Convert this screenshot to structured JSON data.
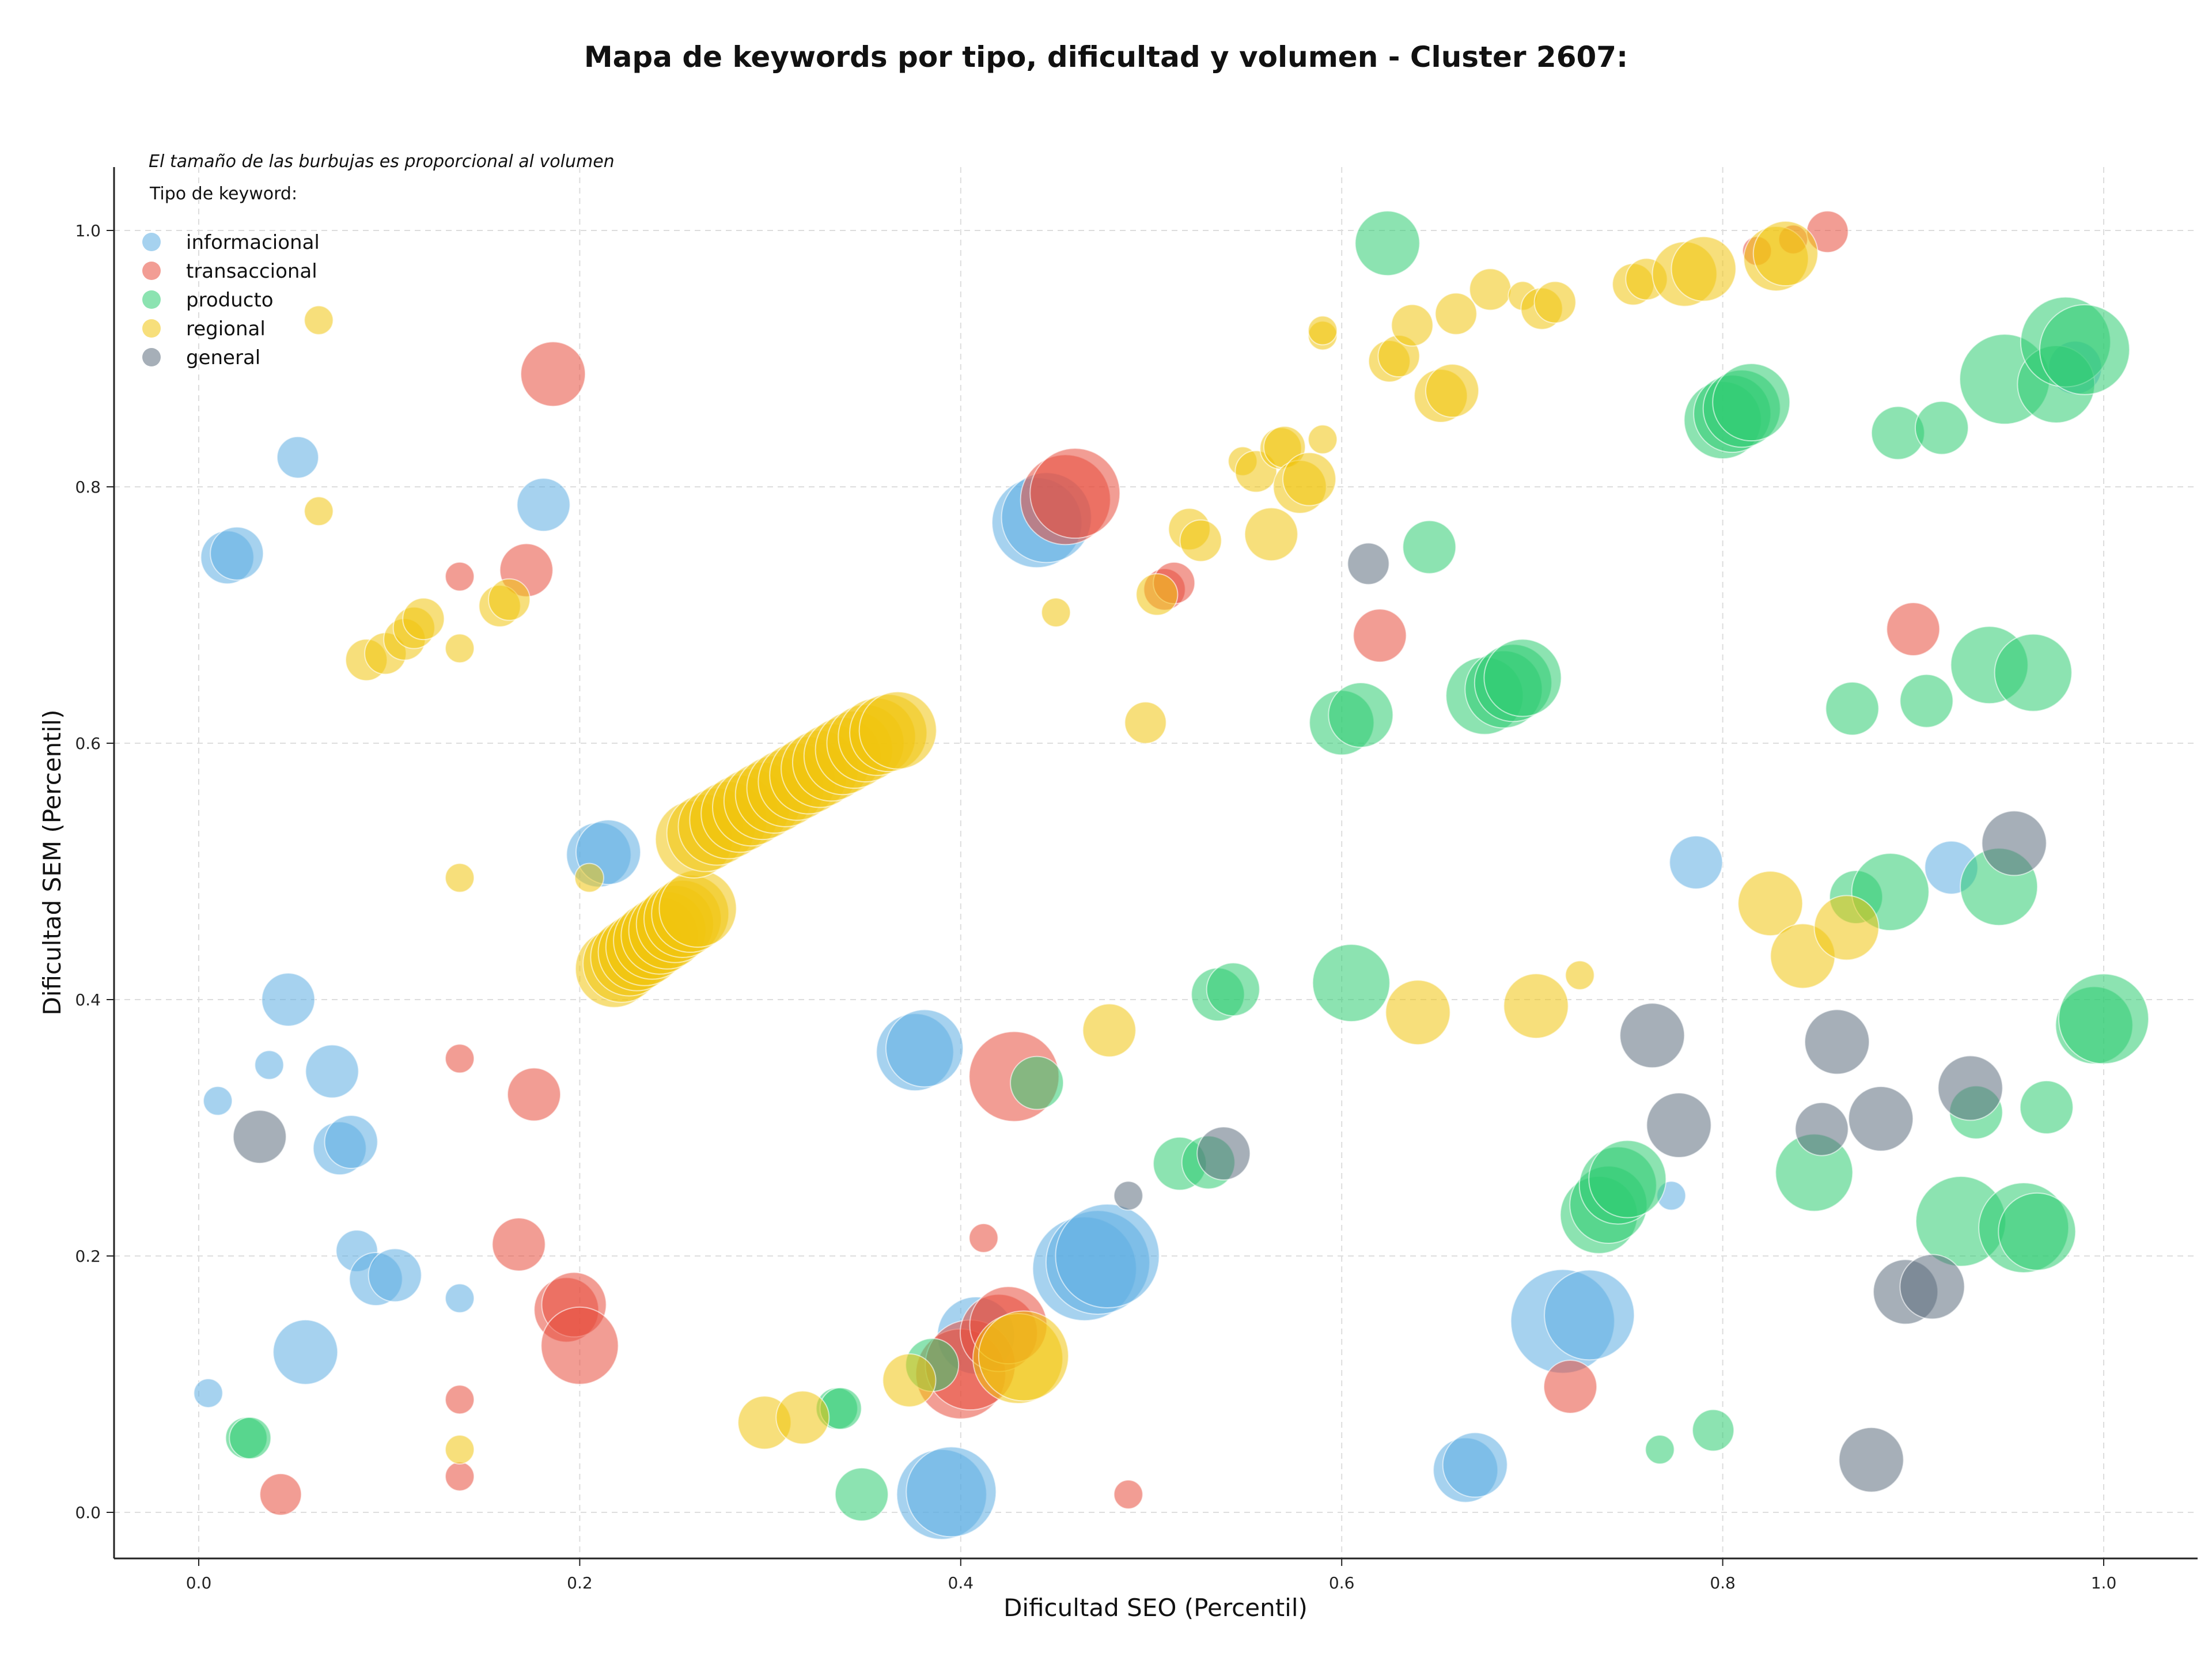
{
  "chart_data": {
    "type": "scatter",
    "title": "Mapa de keywords por tipo, dificultad y volumen - Cluster 2607:",
    "xlabel": "Dificultad SEO (Percentil)",
    "ylabel": "Dificultad SEM (Percentil)",
    "note": "El tamaño de las burbujas es proporcional al volumen",
    "xlim": [
      -0.045,
      1.05
    ],
    "ylim": [
      -0.035,
      1.05
    ],
    "xticks": [
      "0.0",
      "0.2",
      "0.4",
      "0.6",
      "0.8",
      "1.0"
    ],
    "yticks": [
      "0.0",
      "0.2",
      "0.4",
      "0.6",
      "0.8",
      "1.0"
    ],
    "grid": true,
    "legend": {
      "title": "Tipo de keyword:",
      "placement": "top-left"
    },
    "series": [
      {
        "name": "informacional",
        "color": "#5DADE2",
        "points": [
          [
            0.015,
            0.745,
            3
          ],
          [
            0.02,
            0.748,
            3
          ],
          [
            0.052,
            0.823,
            2
          ],
          [
            0.181,
            0.786,
            3
          ],
          [
            0.005,
            0.093,
            1
          ],
          [
            0.01,
            0.321,
            1
          ],
          [
            0.037,
            0.349,
            1
          ],
          [
            0.047,
            0.4,
            3
          ],
          [
            0.07,
            0.344,
            3
          ],
          [
            0.074,
            0.284,
            3
          ],
          [
            0.08,
            0.289,
            3
          ],
          [
            0.083,
            0.204,
            2
          ],
          [
            0.093,
            0.182,
            3
          ],
          [
            0.103,
            0.185,
            3
          ],
          [
            0.137,
            0.167,
            1
          ],
          [
            0.056,
            0.125,
            4
          ],
          [
            0.21,
            0.513,
            4
          ],
          [
            0.215,
            0.515,
            4
          ],
          [
            0.376,
            0.359,
            5
          ],
          [
            0.381,
            0.362,
            5
          ],
          [
            0.44,
            0.772,
            6
          ],
          [
            0.445,
            0.776,
            6
          ],
          [
            0.465,
            0.19,
            7
          ],
          [
            0.472,
            0.195,
            7
          ],
          [
            0.477,
            0.2,
            7
          ],
          [
            0.408,
            0.138,
            5
          ],
          [
            0.39,
            0.014,
            6
          ],
          [
            0.395,
            0.016,
            6
          ],
          [
            0.665,
            0.033,
            4
          ],
          [
            0.67,
            0.037,
            4
          ],
          [
            0.716,
            0.149,
            7
          ],
          [
            0.73,
            0.154,
            6
          ],
          [
            0.773,
            0.247,
            1
          ],
          [
            0.786,
            0.507,
            3
          ],
          [
            0.92,
            0.503,
            3
          ],
          [
            0.985,
            0.893,
            3
          ]
        ]
      },
      {
        "name": "transaccional",
        "color": "#E74C3C",
        "points": [
          [
            0.137,
            0.73,
            1
          ],
          [
            0.172,
            0.735,
            3
          ],
          [
            0.186,
            0.888,
            4
          ],
          [
            0.137,
            0.354,
            1
          ],
          [
            0.176,
            0.326,
            3
          ],
          [
            0.168,
            0.209,
            3
          ],
          [
            0.193,
            0.158,
            4
          ],
          [
            0.197,
            0.162,
            4
          ],
          [
            0.2,
            0.13,
            5
          ],
          [
            0.137,
            0.088,
            1
          ],
          [
            0.137,
            0.028,
            1
          ],
          [
            0.043,
            0.014,
            2
          ],
          [
            0.412,
            0.214,
            1
          ],
          [
            0.4,
            0.108,
            6
          ],
          [
            0.405,
            0.115,
            6
          ],
          [
            0.42,
            0.14,
            5
          ],
          [
            0.425,
            0.146,
            5
          ],
          [
            0.428,
            0.34,
            6
          ],
          [
            0.488,
            0.014,
            1
          ],
          [
            0.455,
            0.79,
            6
          ],
          [
            0.46,
            0.795,
            6
          ],
          [
            0.507,
            0.72,
            2
          ],
          [
            0.512,
            0.725,
            2
          ],
          [
            0.62,
            0.684,
            3
          ],
          [
            0.72,
            0.098,
            3
          ],
          [
            0.818,
            0.984,
            1
          ],
          [
            0.837,
            0.993,
            1
          ],
          [
            0.855,
            0.999,
            2
          ],
          [
            0.9,
            0.689,
            3
          ]
        ]
      },
      {
        "name": "producto",
        "color": "#2ECC71",
        "points": [
          [
            0.025,
            0.058,
            2
          ],
          [
            0.027,
            0.058,
            2
          ],
          [
            0.335,
            0.081,
            2
          ],
          [
            0.337,
            0.081,
            2
          ],
          [
            0.348,
            0.014,
            3
          ],
          [
            0.385,
            0.115,
            3
          ],
          [
            0.44,
            0.335,
            3
          ],
          [
            0.515,
            0.272,
            3
          ],
          [
            0.53,
            0.273,
            3
          ],
          [
            0.535,
            0.404,
            3
          ],
          [
            0.543,
            0.408,
            3
          ],
          [
            0.6,
            0.616,
            4
          ],
          [
            0.61,
            0.622,
            4
          ],
          [
            0.605,
            0.413,
            5
          ],
          [
            0.624,
            0.99,
            4
          ],
          [
            0.646,
            0.753,
            3
          ],
          [
            0.675,
            0.637,
            5
          ],
          [
            0.685,
            0.642,
            5
          ],
          [
            0.69,
            0.647,
            5
          ],
          [
            0.695,
            0.651,
            5
          ],
          [
            0.735,
            0.232,
            5
          ],
          [
            0.74,
            0.24,
            5
          ],
          [
            0.745,
            0.255,
            5
          ],
          [
            0.75,
            0.26,
            5
          ],
          [
            0.767,
            0.049,
            1
          ],
          [
            0.795,
            0.064,
            2
          ],
          [
            0.8,
            0.852,
            5
          ],
          [
            0.805,
            0.857,
            5
          ],
          [
            0.81,
            0.861,
            5
          ],
          [
            0.815,
            0.866,
            5
          ],
          [
            0.848,
            0.265,
            5
          ],
          [
            0.87,
            0.48,
            3
          ],
          [
            0.868,
            0.627,
            3
          ],
          [
            0.888,
            0.484,
            5
          ],
          [
            0.892,
            0.842,
            3
          ],
          [
            0.907,
            0.633,
            3
          ],
          [
            0.915,
            0.846,
            3
          ],
          [
            0.925,
            0.227,
            6
          ],
          [
            0.933,
            0.312,
            3
          ],
          [
            0.94,
            0.661,
            5
          ],
          [
            0.945,
            0.488,
            5
          ],
          [
            0.948,
            0.884,
            6
          ],
          [
            0.958,
            0.222,
            6
          ],
          [
            0.965,
            0.219,
            5
          ],
          [
            0.963,
            0.655,
            5
          ],
          [
            0.97,
            0.316,
            3
          ],
          [
            0.975,
            0.88,
            5
          ],
          [
            0.98,
            0.913,
            6
          ],
          [
            0.99,
            0.907,
            6
          ],
          [
            0.995,
            0.38,
            5
          ],
          [
            1.0,
            0.385,
            6
          ]
        ]
      },
      {
        "name": "regional",
        "color": "#F1C40F",
        "points": [
          [
            0.063,
            0.93,
            1
          ],
          [
            0.063,
            0.781,
            1
          ],
          [
            0.088,
            0.665,
            2
          ],
          [
            0.098,
            0.67,
            2
          ],
          [
            0.108,
            0.681,
            2
          ],
          [
            0.113,
            0.69,
            2
          ],
          [
            0.118,
            0.697,
            2
          ],
          [
            0.137,
            0.674,
            1
          ],
          [
            0.158,
            0.707,
            2
          ],
          [
            0.163,
            0.712,
            2
          ],
          [
            0.137,
            0.495,
            1
          ],
          [
            0.205,
            0.495,
            1
          ],
          [
            0.137,
            0.049,
            1
          ],
          [
            0.297,
            0.07,
            3
          ],
          [
            0.317,
            0.074,
            3
          ],
          [
            0.373,
            0.103,
            3
          ],
          [
            0.43,
            0.12,
            6
          ],
          [
            0.433,
            0.122,
            6
          ],
          [
            0.45,
            0.702,
            1
          ],
          [
            0.478,
            0.376,
            3
          ],
          [
            0.497,
            0.616,
            2
          ],
          [
            0.503,
            0.716,
            2
          ],
          [
            0.52,
            0.767,
            2
          ],
          [
            0.526,
            0.758,
            2
          ],
          [
            0.548,
            0.82,
            1
          ],
          [
            0.555,
            0.812,
            2
          ],
          [
            0.563,
            0.763,
            3
          ],
          [
            0.568,
            0.83,
            2
          ],
          [
            0.57,
            0.831,
            2
          ],
          [
            0.578,
            0.8,
            3
          ],
          [
            0.583,
            0.806,
            3
          ],
          [
            0.59,
            0.837,
            1
          ],
          [
            0.59,
            0.918,
            1
          ],
          [
            0.59,
            0.922,
            1
          ],
          [
            0.625,
            0.898,
            2
          ],
          [
            0.63,
            0.902,
            2
          ],
          [
            0.637,
            0.926,
            2
          ],
          [
            0.652,
            0.871,
            3
          ],
          [
            0.658,
            0.875,
            3
          ],
          [
            0.66,
            0.935,
            2
          ],
          [
            0.64,
            0.39,
            4
          ],
          [
            0.678,
            0.954,
            2
          ],
          [
            0.695,
            0.949,
            1
          ],
          [
            0.702,
            0.395,
            4
          ],
          [
            0.705,
            0.939,
            2
          ],
          [
            0.712,
            0.944,
            2
          ],
          [
            0.725,
            0.419,
            1
          ],
          [
            0.753,
            0.958,
            2
          ],
          [
            0.76,
            0.962,
            2
          ],
          [
            0.78,
            0.966,
            4
          ],
          [
            0.79,
            0.97,
            4
          ],
          [
            0.825,
            0.475,
            4
          ],
          [
            0.828,
            0.978,
            4
          ],
          [
            0.833,
            0.982,
            4
          ],
          [
            0.842,
            0.434,
            4
          ],
          [
            0.865,
            0.456,
            4
          ],
          [
            0.218,
            0.424,
            5
          ],
          [
            0.222,
            0.428,
            5
          ],
          [
            0.226,
            0.433,
            5
          ],
          [
            0.23,
            0.437,
            5
          ],
          [
            0.234,
            0.441,
            5
          ],
          [
            0.238,
            0.446,
            5
          ],
          [
            0.242,
            0.45,
            5
          ],
          [
            0.246,
            0.454,
            5
          ],
          [
            0.25,
            0.459,
            5
          ],
          [
            0.254,
            0.463,
            5
          ],
          [
            0.258,
            0.467,
            5
          ],
          [
            0.262,
            0.471,
            5
          ],
          [
            0.26,
            0.525,
            5
          ],
          [
            0.266,
            0.53,
            5
          ],
          [
            0.272,
            0.535,
            5
          ],
          [
            0.278,
            0.54,
            5
          ],
          [
            0.284,
            0.545,
            5
          ],
          [
            0.29,
            0.55,
            5
          ],
          [
            0.296,
            0.555,
            5
          ],
          [
            0.302,
            0.56,
            5
          ],
          [
            0.308,
            0.565,
            5
          ],
          [
            0.314,
            0.57,
            5
          ],
          [
            0.32,
            0.575,
            5
          ],
          [
            0.326,
            0.58,
            5
          ],
          [
            0.332,
            0.585,
            5
          ],
          [
            0.338,
            0.59,
            5
          ],
          [
            0.344,
            0.595,
            5
          ],
          [
            0.35,
            0.6,
            5
          ],
          [
            0.356,
            0.605,
            5
          ],
          [
            0.362,
            0.608,
            5
          ],
          [
            0.367,
            0.61,
            5
          ]
        ]
      },
      {
        "name": "general",
        "color": "#5D6D7E",
        "points": [
          [
            0.032,
            0.293,
            3
          ],
          [
            0.488,
            0.247,
            1
          ],
          [
            0.538,
            0.28,
            3
          ],
          [
            0.614,
            0.74,
            2
          ],
          [
            0.763,
            0.372,
            4
          ],
          [
            0.777,
            0.302,
            4
          ],
          [
            0.852,
            0.299,
            3
          ],
          [
            0.86,
            0.367,
            4
          ],
          [
            0.878,
            0.041,
            4
          ],
          [
            0.883,
            0.307,
            4
          ],
          [
            0.896,
            0.172,
            4
          ],
          [
            0.91,
            0.176,
            4
          ],
          [
            0.93,
            0.331,
            4
          ],
          [
            0.953,
            0.522,
            4
          ]
        ]
      }
    ]
  }
}
